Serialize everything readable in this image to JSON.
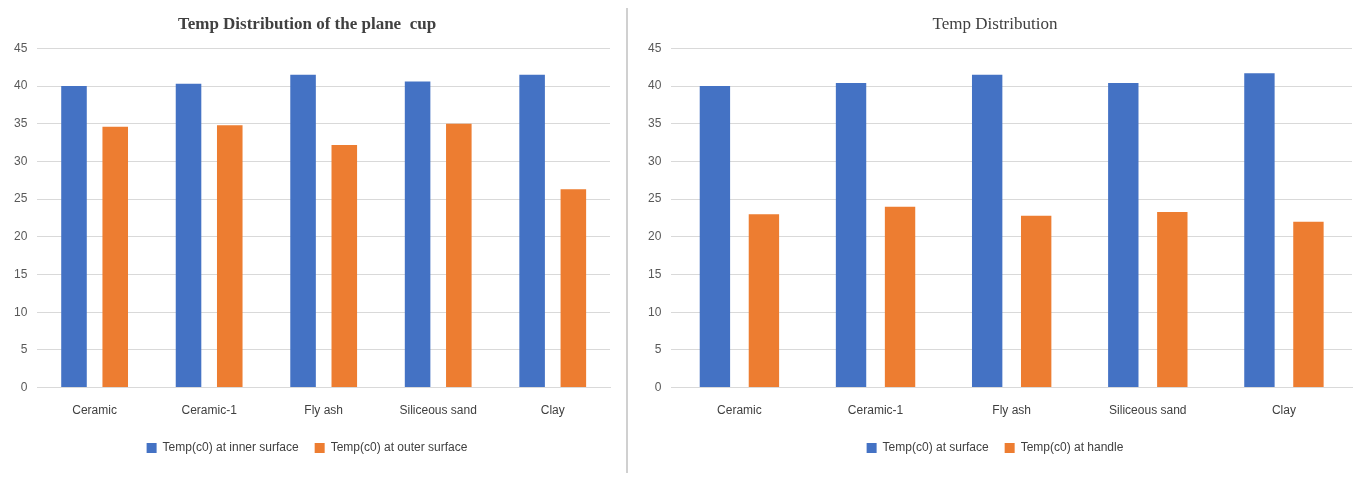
{
  "chart_data": [
    {
      "type": "bar",
      "title": "Temp Distribution of the plane  cup",
      "categories": [
        "Ceramic",
        "Ceramic-1",
        "Fly ash",
        "Siliceous sand",
        "Clay"
      ],
      "series": [
        {
          "name": "Temp(c0) at inner surface",
          "color": "#4472c4",
          "values": [
            40,
            40.3,
            41.5,
            40.6,
            41.5
          ]
        },
        {
          "name": "Temp(c0) at outer surface",
          "color": "#ed7d31",
          "values": [
            34.6,
            34.8,
            32.2,
            35,
            26.3
          ]
        }
      ],
      "ylim": [
        0,
        45
      ],
      "yticks": [
        0,
        5,
        10,
        15,
        20,
        25,
        30,
        35,
        40,
        45
      ],
      "grid": "y",
      "legend": "bottom"
    },
    {
      "type": "bar",
      "title": "Temp Distribution",
      "categories": [
        "Ceramic",
        "Ceramic-1",
        "Fly ash",
        "Siliceous sand",
        "Clay"
      ],
      "series": [
        {
          "name": "Temp(c0) at surface",
          "color": "#4472c4",
          "values": [
            40,
            40.4,
            41.5,
            40.4,
            41.7
          ]
        },
        {
          "name": "Temp(c0) at handle",
          "color": "#ed7d31",
          "values": [
            23,
            24,
            22.8,
            23.3,
            22
          ]
        }
      ],
      "ylim": [
        0,
        45
      ],
      "yticks": [
        0,
        5,
        10,
        15,
        20,
        25,
        30,
        35,
        40,
        45
      ],
      "grid": "y",
      "legend": "bottom"
    }
  ]
}
